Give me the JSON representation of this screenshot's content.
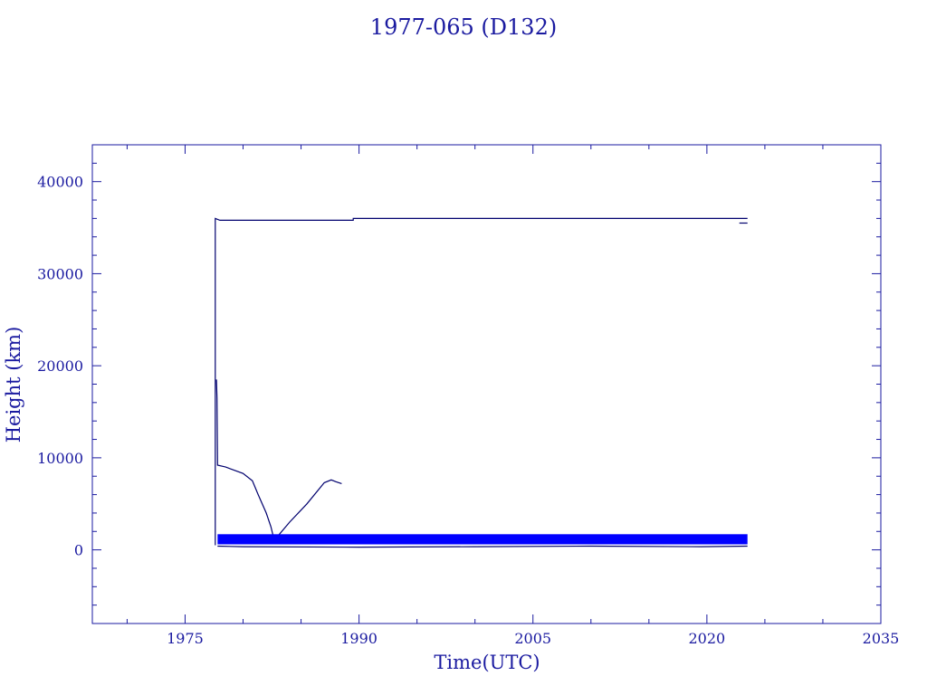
{
  "chart_data": {
    "type": "line",
    "title": "1977-065 (D132)",
    "xlabel": "Time(UTC)",
    "ylabel": "Height (km)",
    "xlim": [
      1967,
      2035
    ],
    "ylim": [
      -8000,
      44000
    ],
    "x_ticks": [
      1975,
      1990,
      2005,
      2020,
      2035
    ],
    "y_ticks": [
      0,
      10000,
      20000,
      30000,
      40000
    ],
    "grid": false,
    "series": [
      {
        "kind": "line",
        "color": "#00006e",
        "points": [
          [
            1977.6,
            500
          ],
          [
            1977.6,
            36000
          ],
          [
            1978.0,
            35800
          ],
          [
            1989.5,
            35800
          ],
          [
            1989.5,
            36000
          ],
          [
            1991.0,
            36000
          ],
          [
            2023.5,
            36000
          ]
        ]
      },
      {
        "kind": "line",
        "color": "#00006e",
        "points": [
          [
            2022.8,
            35500
          ],
          [
            2023.5,
            35500
          ]
        ]
      },
      {
        "kind": "line",
        "color": "#00006e",
        "points": [
          [
            1977.7,
            18500
          ],
          [
            1977.75,
            16500
          ],
          [
            1977.8,
            9200
          ],
          [
            1978.5,
            9000
          ],
          [
            1980.0,
            8300
          ],
          [
            1980.8,
            7500
          ],
          [
            1981.3,
            6000
          ],
          [
            1982.0,
            4000
          ],
          [
            1982.4,
            2500
          ],
          [
            1982.6,
            1500
          ],
          [
            1983.0,
            1500
          ],
          [
            1984.0,
            3000
          ],
          [
            1985.5,
            5000
          ],
          [
            1987.0,
            7300
          ],
          [
            1987.6,
            7600
          ],
          [
            1988.0,
            7400
          ],
          [
            1988.5,
            7200
          ]
        ]
      },
      {
        "kind": "band",
        "color": "#0000ff",
        "x": [
          1977.8,
          2023.5
        ],
        "y_low": 600,
        "y_high": 1700
      },
      {
        "kind": "line",
        "color": "#00006e",
        "points": [
          [
            1977.8,
            400
          ],
          [
            1980,
            350
          ],
          [
            1990,
            300
          ],
          [
            2000,
            350
          ],
          [
            2010,
            400
          ],
          [
            2019.5,
            350
          ],
          [
            2023.5,
            400
          ]
        ]
      }
    ]
  }
}
